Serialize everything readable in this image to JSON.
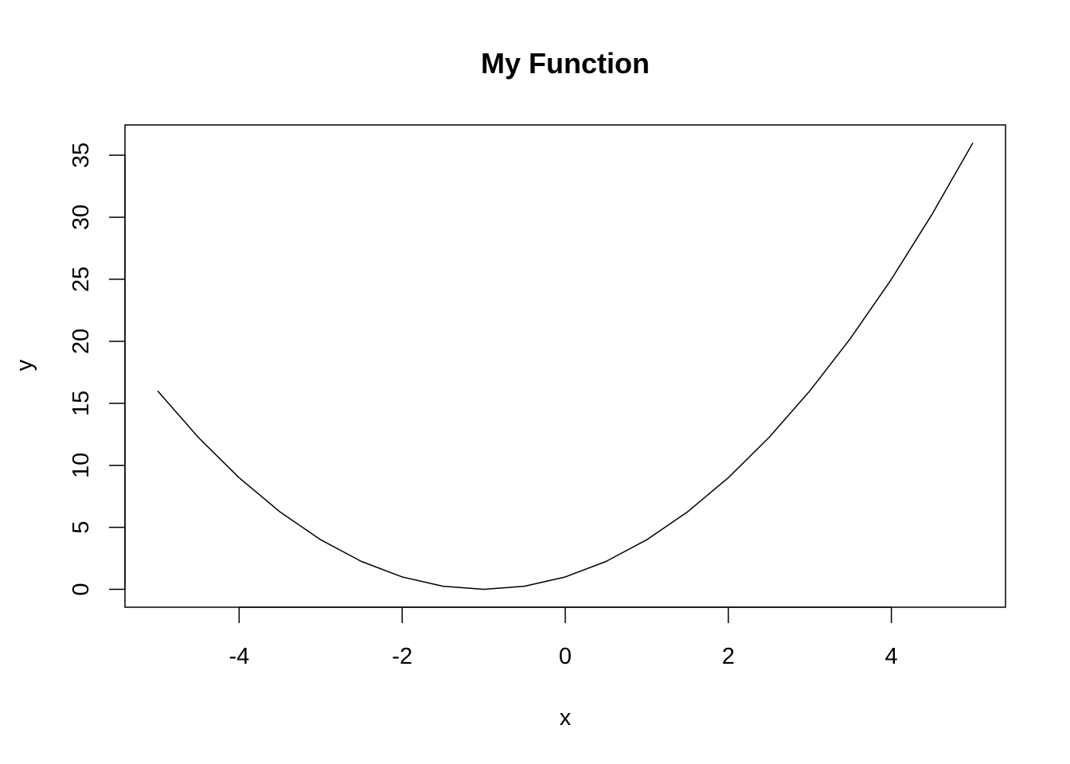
{
  "chart_data": {
    "type": "line",
    "title": "My Function",
    "xlabel": "x",
    "ylabel": "y",
    "xlim": [
      -5.4,
      5.4
    ],
    "ylim": [
      -1.44,
      37.44
    ],
    "x_ticks": [
      -4,
      -2,
      0,
      2,
      4
    ],
    "x_tick_labels": [
      "-4",
      "-2",
      "0",
      "2",
      "4"
    ],
    "y_ticks": [
      0,
      5,
      10,
      15,
      20,
      25,
      30,
      35
    ],
    "y_tick_labels": [
      "0",
      "5",
      "10",
      "15",
      "20",
      "25",
      "30",
      "35"
    ],
    "grid": false,
    "legend": "none",
    "line_color": "#000000",
    "series": [
      {
        "x": [
          -5,
          -4.5,
          -4,
          -3.5,
          -3,
          -2.5,
          -2,
          -1.5,
          -1,
          -0.5,
          0,
          0.5,
          1,
          1.5,
          2,
          2.5,
          3,
          3.5,
          4,
          4.5,
          5
        ],
        "y": [
          16,
          12.25,
          9,
          6.25,
          4,
          2.25,
          1,
          0.25,
          0,
          0.25,
          1,
          2.25,
          4,
          6.25,
          9,
          12.25,
          16,
          20.25,
          25,
          30.25,
          36
        ]
      }
    ]
  }
}
